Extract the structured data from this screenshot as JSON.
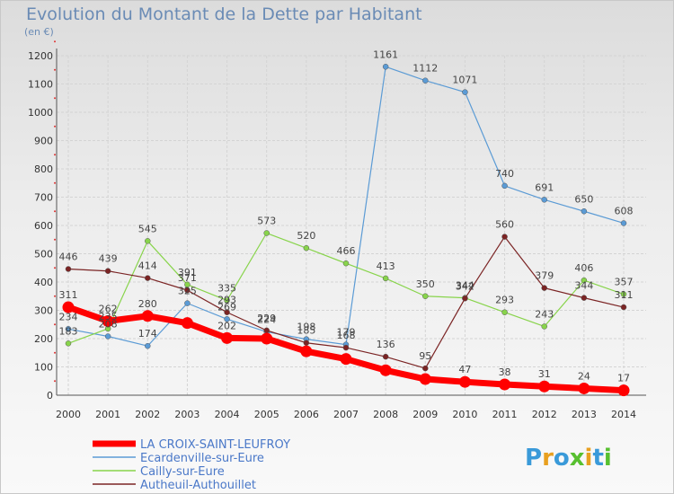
{
  "title": "Evolution du Montant de la Dette par Habitant",
  "unit": "(en €)",
  "logo": "Proxiti",
  "chart_data": {
    "type": "line",
    "x": [
      2000,
      2001,
      2002,
      2003,
      2004,
      2005,
      2006,
      2007,
      2008,
      2009,
      2010,
      2011,
      2012,
      2013,
      2014
    ],
    "ylim": [
      0,
      1200
    ],
    "yticks": [
      0,
      100,
      200,
      300,
      400,
      500,
      600,
      700,
      800,
      900,
      1000,
      1100,
      1200
    ],
    "grid": true,
    "legend_position": "bottom-left",
    "series": [
      {
        "name": "LA CROIX-SAINT-LEUFROY",
        "color": "#ff0000",
        "values": [
          311,
          262,
          280,
          255,
          202,
          200,
          155,
          128,
          88,
          57,
          47,
          38,
          31,
          24,
          17
        ],
        "labels": [
          "311",
          "262",
          "280",
          "",
          "202",
          "",
          "",
          "",
          "",
          "",
          "47",
          "38",
          "31",
          "24",
          "17"
        ]
      },
      {
        "name": "Ecardenville-sur-Eure",
        "color": "#5b9bd5",
        "values": [
          234,
          208,
          174,
          325,
          269,
          224,
          198,
          179,
          1161,
          1112,
          1071,
          740,
          691,
          650,
          608
        ],
        "labels": [
          "234",
          "208",
          "174",
          "325",
          "269",
          "224",
          "198",
          "179",
          "1161",
          "1112",
          "1071",
          "740",
          "691",
          "650",
          "608"
        ]
      },
      {
        "name": "Cailly-sur-Eure",
        "color": "#88d44b",
        "values": [
          183,
          235,
          545,
          391,
          335,
          573,
          520,
          466,
          413,
          350,
          344,
          293,
          243,
          406,
          357
        ],
        "labels": [
          "183",
          "235",
          "545",
          "391",
          "335",
          "573",
          "520",
          "466",
          "413",
          "350",
          "344",
          "293",
          "243",
          "406",
          "357"
        ]
      },
      {
        "name": "Autheuil-Authouillet",
        "color": "#7b2424",
        "values": [
          446,
          439,
          414,
          371,
          293,
          229,
          185,
          168,
          136,
          95,
          342,
          560,
          379,
          344,
          311
        ],
        "labels": [
          "446",
          "439",
          "414",
          "371",
          "293",
          "229",
          "185",
          "168",
          "136",
          "95",
          "342",
          "560",
          "379",
          "344",
          "311"
        ]
      }
    ]
  }
}
